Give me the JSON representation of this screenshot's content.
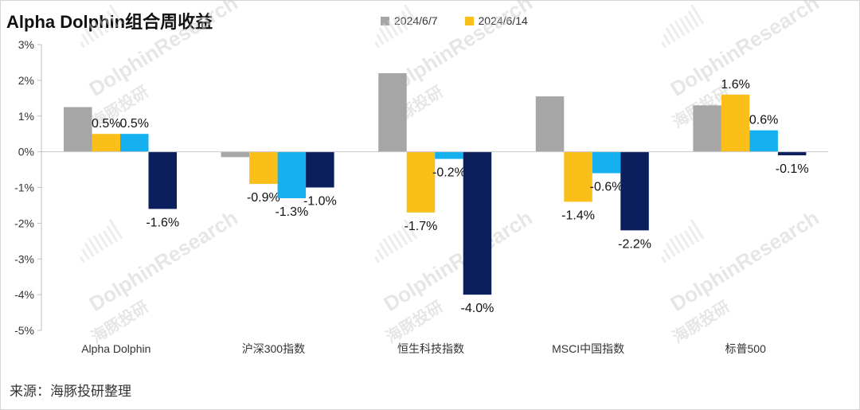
{
  "chart_data": {
    "type": "bar",
    "title": "Alpha Dolphin组合周收益",
    "categories": [
      "Alpha Dolphin",
      "沪深300指数",
      "恒生科技指数",
      "MSCI中国指数",
      "标普500"
    ],
    "series": [
      {
        "name": "2024/6/7",
        "color": "#a6a6a6",
        "values": [
          1.25,
          -0.15,
          2.2,
          1.55,
          1.3
        ],
        "labels": [
          "",
          "",
          "",
          "",
          ""
        ]
      },
      {
        "name": "2024/6/14",
        "color": "#fbbf1a",
        "values": [
          0.5,
          -0.9,
          -1.7,
          -1.4,
          1.6
        ],
        "labels": [
          "0.5%",
          "-0.9%",
          "-1.7%",
          "-1.4%",
          "1.6%"
        ]
      },
      {
        "name": "",
        "color": "#14b0ef",
        "values": [
          0.5,
          -1.3,
          -0.2,
          -0.6,
          0.6
        ],
        "labels": [
          "0.5%",
          "-1.3%",
          "-0.2%",
          "-0.6%",
          "0.6%"
        ]
      },
      {
        "name": "",
        "color": "#0b1f5c",
        "values": [
          -1.6,
          -1.0,
          -4.0,
          -2.2,
          -0.1
        ],
        "labels": [
          "-1.6%",
          "-1.0%",
          "-4.0%",
          "-2.2%",
          "-0.1%"
        ]
      }
    ],
    "ylim": [
      -5,
      3
    ],
    "yticks": [
      "3%",
      "2%",
      "1%",
      "0%",
      "-1%",
      "-2%",
      "-3%",
      "-4%",
      "-5%"
    ],
    "xlabel": "",
    "ylabel": "",
    "legend_position": "top",
    "grid": false
  },
  "source": "来源：海豚投研整理",
  "watermark": {
    "brand": "DolphinResearch",
    "cn": "海豚投研"
  }
}
